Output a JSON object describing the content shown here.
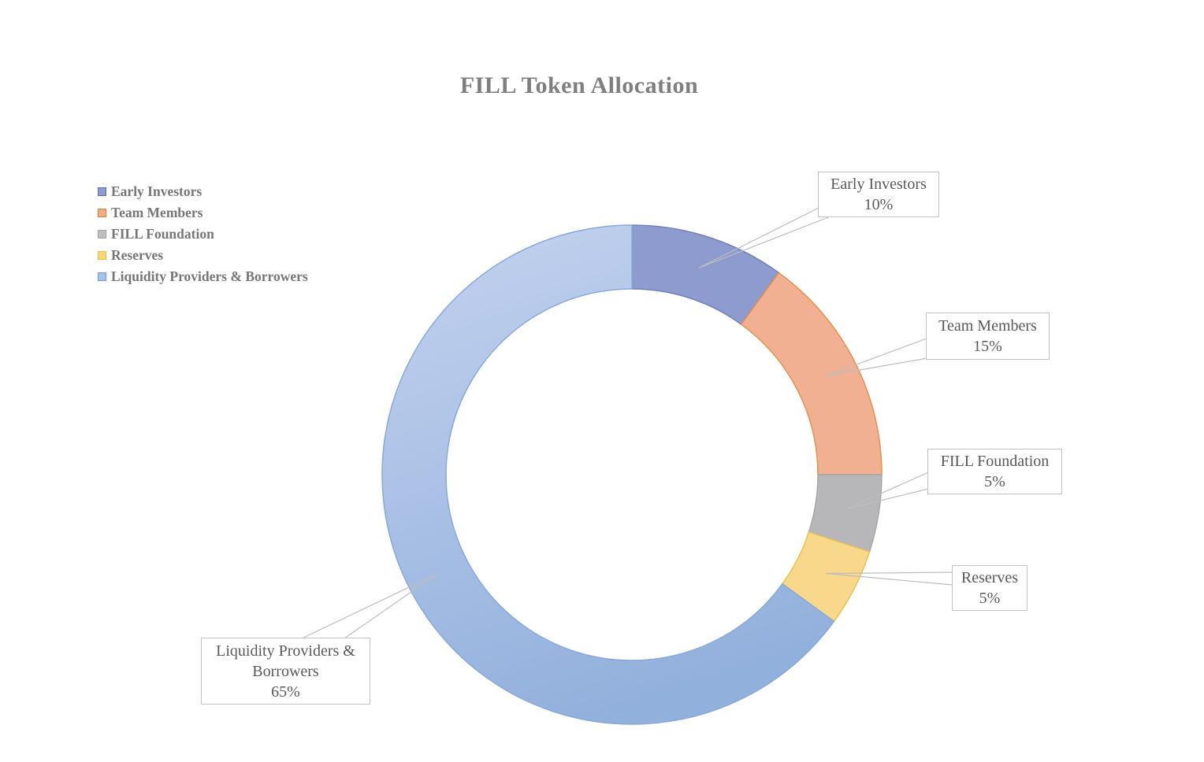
{
  "title": "FILL Token Allocation",
  "chart_data": {
    "type": "pie",
    "subtype": "donut",
    "title": "FILL Token Allocation",
    "categories": [
      "Early Investors",
      "Team Members",
      "FILL Foundation",
      "Reserves",
      "Liquidity Providers & Borrowers"
    ],
    "values": [
      10,
      15,
      5,
      5,
      65
    ],
    "unit": "%",
    "start_angle_deg": 0,
    "direction": "clockwise",
    "inner_radius_ratio": 0.745,
    "legend_position": "upper-left",
    "colors": [
      "#8d9bce",
      "#f0b091",
      "#b7b7ba",
      "#f8d88b",
      "#a6bfe5"
    ],
    "border_colors": [
      "#7080ba",
      "#e2914f",
      "#a7a7aa",
      "#e9c252",
      "#86a9da"
    ],
    "gradient_slice_index": 4,
    "gradient": {
      "from": "#c2d1ee",
      "to": "#92b0dc"
    },
    "leader_line_color": "#bdbdbd",
    "callout_border_color": "#c2c2c2",
    "title_color": "#7f7f7f",
    "legend_text_color": "#767676",
    "callout_text_color": "#595959"
  },
  "legend": {
    "items": [
      {
        "label": "Early Investors",
        "fill": "#8d9bce",
        "border": "#5f6fae"
      },
      {
        "label": "Team Members",
        "fill": "#f0ac85",
        "border": "#dd7e43"
      },
      {
        "label": "FILL Foundation",
        "fill": "#bfbfbf",
        "border": "#a3a3a3"
      },
      {
        "label": "Reserves",
        "fill": "#f8d876",
        "border": "#e6bd49"
      },
      {
        "label": "Liquidity Providers & Borrowers",
        "fill": "#a6c2e8",
        "border": "#6f9bd3"
      }
    ]
  },
  "callouts": [
    {
      "label": "Early Investors",
      "value": "10%"
    },
    {
      "label": "Team Members",
      "value": "15%"
    },
    {
      "label": "FILL Foundation",
      "value": "5%"
    },
    {
      "label": "Reserves",
      "value": "5%"
    },
    {
      "label": "Liquidity Providers & Borrowers",
      "value": "65%"
    }
  ]
}
